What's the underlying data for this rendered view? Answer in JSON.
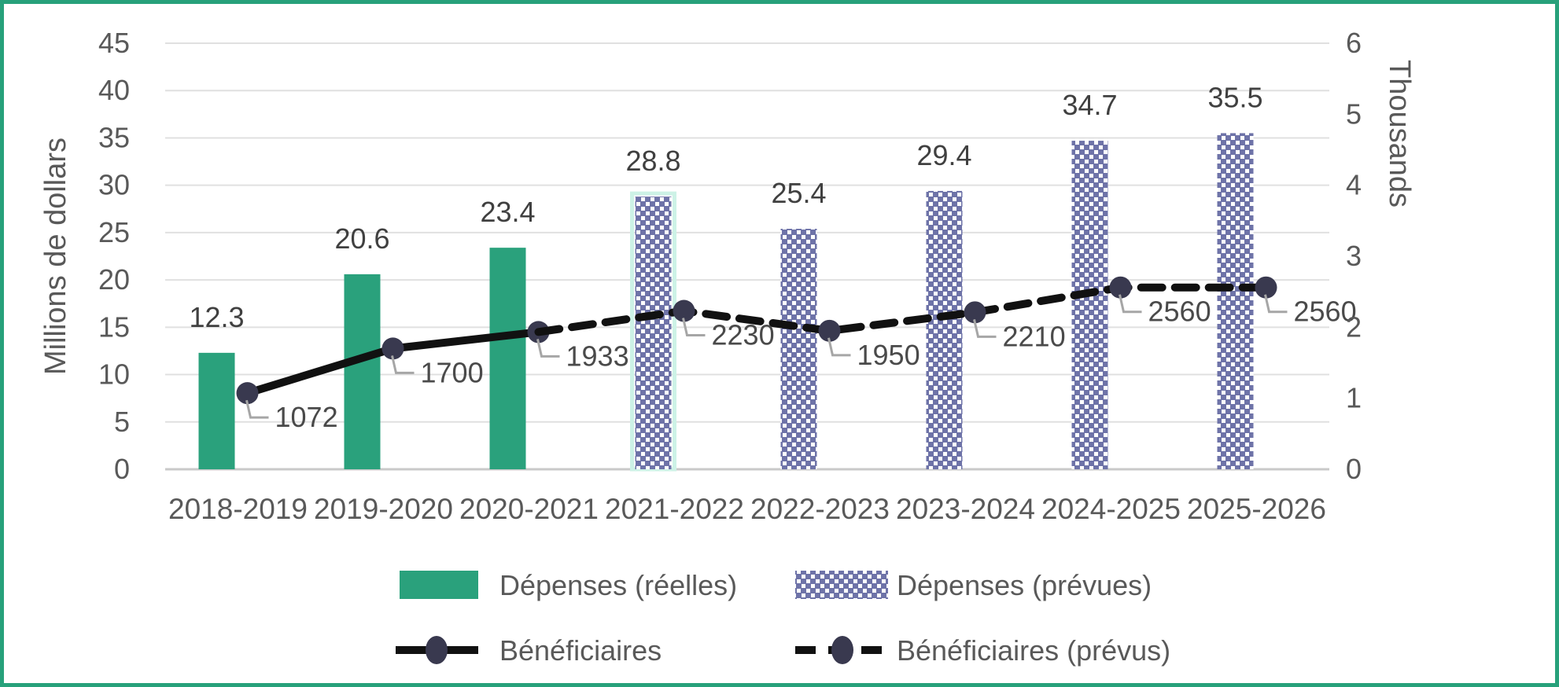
{
  "colors": {
    "frame_green": "#27A17B",
    "bar_green": "#2AA17C",
    "pattern_blue": "#6E73A8",
    "pattern_bg": "#FFFFFF",
    "highlight_mint": "#CDF2E6",
    "line_black": "#111111",
    "marker_navy": "#39394F",
    "leader_gray": "#A6A6A6",
    "grid_gray": "#E0E0E0",
    "axisline_gray": "#C9C9C9",
    "tick_text": "#595959",
    "label_text": "#404040"
  },
  "chart_data": {
    "type": "combo: bar + line",
    "categories": [
      "2018-2019",
      "2019-2020",
      "2020-2021",
      "2021-2022",
      "2022-2023",
      "2023-2024",
      "2024-2025",
      "2025-2026"
    ],
    "axes": {
      "left": {
        "title": "Millions de dollars",
        "min": 0,
        "max": 45,
        "step": 5,
        "tick_labels": [
          "45",
          "40",
          "35",
          "30",
          "25",
          "20",
          "15",
          "10",
          "5",
          "0"
        ]
      },
      "right": {
        "title": "Thousands",
        "min": 0,
        "max": 6,
        "step": 1,
        "tick_labels": [
          "6",
          "5",
          "4",
          "3",
          "2",
          "1",
          "0"
        ]
      }
    },
    "grid": true,
    "legend_position": "bottom",
    "series": [
      {
        "name": "Dépenses (réelles)",
        "type": "bar",
        "style": "solid-green",
        "axis": "left",
        "values": [
          12.3,
          20.6,
          23.4,
          null,
          null,
          null,
          null,
          null
        ],
        "data_labels": [
          "12.3",
          "20.6",
          "23.4",
          null,
          null,
          null,
          null,
          null
        ]
      },
      {
        "name": "Dépenses (prévues)",
        "type": "bar",
        "style": "checkered-pattern",
        "axis": "left",
        "values": [
          null,
          null,
          null,
          28.8,
          25.4,
          29.4,
          34.7,
          35.5
        ],
        "data_labels": [
          null,
          null,
          null,
          "28.8",
          "25.4",
          "29.4",
          "34.7",
          "35.5"
        ],
        "highlighted_category_index": 3
      },
      {
        "name": "Bénéficiaires",
        "type": "line",
        "style": "solid",
        "axis": "right",
        "values": [
          1072,
          1700,
          1933,
          null,
          null,
          null,
          null,
          null
        ],
        "data_labels": [
          "1072",
          "1700",
          "1933",
          null,
          null,
          null,
          null,
          null
        ],
        "marker_indices": [
          0,
          1,
          2
        ]
      },
      {
        "name": "Bénéficiaires (prévus)",
        "type": "line",
        "style": "dashed",
        "axis": "right",
        "values": [
          null,
          null,
          1933,
          2230,
          1950,
          2210,
          2560,
          2560
        ],
        "data_labels": [
          null,
          null,
          null,
          "2230",
          "1950",
          "2210",
          "2560",
          "2560"
        ],
        "marker_indices": [
          3,
          4,
          5,
          6,
          7
        ]
      }
    ]
  }
}
